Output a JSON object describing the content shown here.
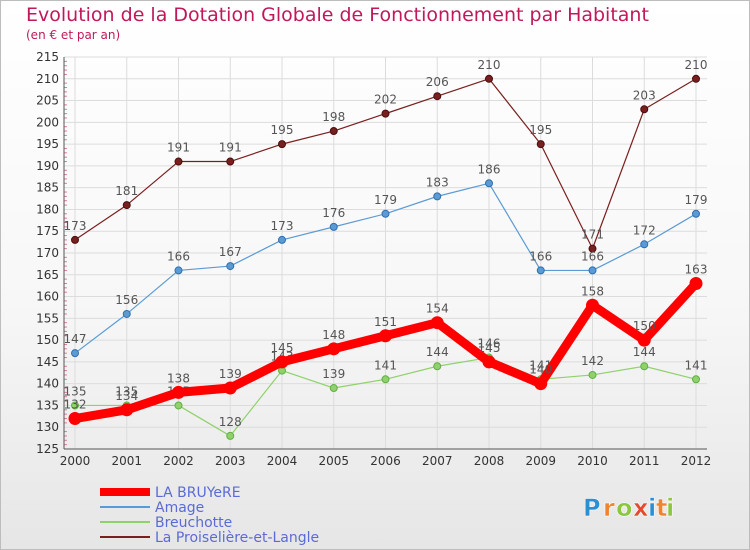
{
  "header": {
    "title": "Evolution de la Dotation Globale de Fonctionnement par Habitant",
    "subtitle": "(en € et par an)"
  },
  "brand": {
    "letters": [
      "P",
      "r",
      "o",
      "x",
      "i",
      "t",
      "i"
    ],
    "colors": [
      "#2b8fd6",
      "#f0842c",
      "#8cc63f",
      "#e64a2e",
      "#2b8fd6",
      "#f0842c",
      "#8cc63f"
    ]
  },
  "chart_data": {
    "type": "line",
    "title": "Evolution de la Dotation Globale de Fonctionnement par Habitant",
    "subtitle": "(en € et par an)",
    "xlabel": "",
    "ylabel": "",
    "x": [
      "2000",
      "2001",
      "2002",
      "2003",
      "2004",
      "2005",
      "2006",
      "2007",
      "2008",
      "2009",
      "2010",
      "2011",
      "2012"
    ],
    "ylim": [
      125,
      215
    ],
    "yticks": [
      125,
      130,
      135,
      140,
      145,
      150,
      155,
      160,
      165,
      170,
      175,
      180,
      185,
      190,
      195,
      200,
      205,
      210,
      215
    ],
    "grid": true,
    "legend": "bottom-left",
    "series": [
      {
        "name": "LA BRUYeRE",
        "color": "#ff0000",
        "values": [
          132,
          134,
          138,
          139,
          145,
          148,
          151,
          154,
          145,
          140,
          158,
          150,
          163
        ]
      },
      {
        "name": "Amage",
        "color": "#5b9bd5",
        "values": [
          147,
          156,
          166,
          167,
          173,
          176,
          179,
          183,
          186,
          166,
          166,
          172,
          179
        ]
      },
      {
        "name": "Breuchotte",
        "color": "#8fd16a",
        "values": [
          135,
          135,
          135,
          128,
          143,
          139,
          141,
          144,
          146,
          141,
          142,
          144,
          141
        ]
      },
      {
        "name": "La Proiselière-et-Langle",
        "color": "#7a1f1f",
        "values": [
          173,
          181,
          191,
          191,
          195,
          198,
          202,
          206,
          210,
          195,
          171,
          203,
          210
        ]
      }
    ]
  }
}
